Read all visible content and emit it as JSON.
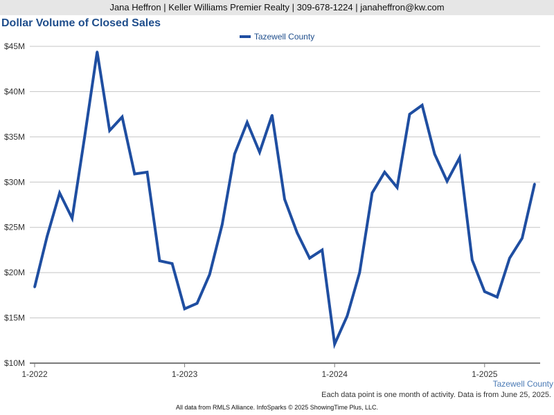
{
  "header": {
    "contact": "Jana Heffron | Keller Williams Premier Realty | 309-678-1224 | janaheffron@kw.com"
  },
  "chart_data": {
    "type": "line",
    "title": "Dollar Volume of Closed Sales",
    "xlabel": "",
    "ylabel": "",
    "ylim": [
      10,
      45
    ],
    "yticks": [
      10,
      15,
      20,
      25,
      30,
      35,
      40,
      45
    ],
    "ytick_labels": [
      "$10M",
      "$15M",
      "$20M",
      "$25M",
      "$30M",
      "$35M",
      "$40M",
      "$45M"
    ],
    "xtick_labels": [
      "1-2022",
      "1-2023",
      "1-2024",
      "1-2025"
    ],
    "grid": true,
    "legend_position": "top-center",
    "x": [
      "1-2022",
      "2-2022",
      "3-2022",
      "4-2022",
      "5-2022",
      "6-2022",
      "7-2022",
      "8-2022",
      "9-2022",
      "10-2022",
      "11-2022",
      "12-2022",
      "1-2023",
      "2-2023",
      "3-2023",
      "4-2023",
      "5-2023",
      "6-2023",
      "7-2023",
      "8-2023",
      "9-2023",
      "10-2023",
      "11-2023",
      "12-2023",
      "1-2024",
      "2-2024",
      "3-2024",
      "4-2024",
      "5-2024",
      "6-2024",
      "7-2024",
      "8-2024",
      "9-2024",
      "10-2024",
      "11-2024",
      "12-2024",
      "1-2025",
      "2-2025",
      "3-2025",
      "4-2025",
      "5-2025"
    ],
    "series": [
      {
        "name": "Tazewell County",
        "color": "#1f4ea1",
        "values": [
          18.4,
          24.0,
          28.8,
          26.0,
          35.0,
          44.4,
          35.7,
          37.2,
          30.9,
          31.1,
          21.3,
          21.0,
          16.0,
          16.6,
          19.8,
          25.3,
          33.1,
          36.6,
          33.3,
          37.4,
          28.1,
          24.4,
          21.6,
          22.5,
          12.1,
          15.2,
          20.0,
          28.8,
          31.1,
          29.4,
          37.5,
          38.5,
          33.1,
          30.1,
          32.7,
          21.4,
          17.9,
          17.3,
          21.6,
          23.8,
          29.8
        ]
      }
    ]
  },
  "labels": {
    "corner": "Tazewell County",
    "note": "Each data point is one month of activity. Data is from June 25, 2025.",
    "footer": "All data from RMLS Alliance. InfoSparks © 2025 ShowingTime Plus, LLC."
  }
}
